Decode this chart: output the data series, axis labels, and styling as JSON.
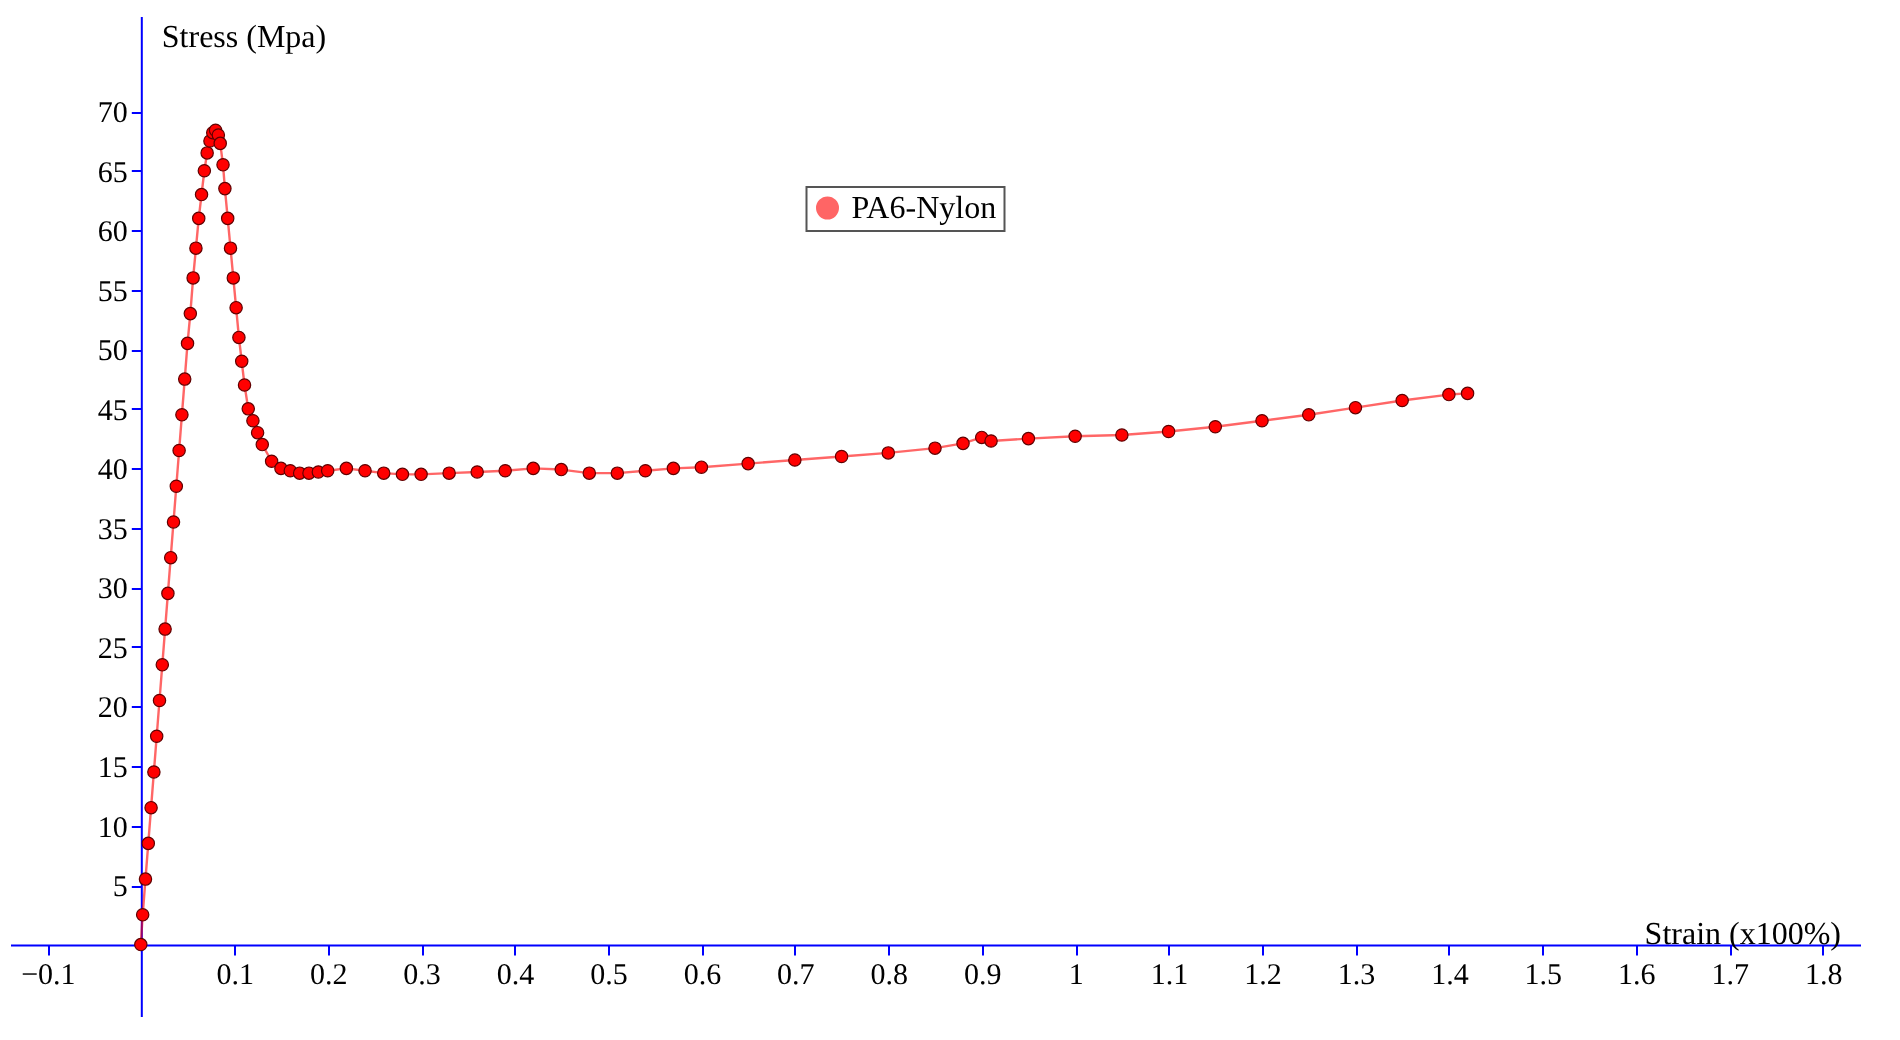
{
  "chart_data": {
    "type": "line",
    "xlabel": "Strain (x100%)",
    "ylabel": "Stress (Mpa)",
    "xlim": [
      -0.14,
      1.84
    ],
    "ylim": [
      -6,
      78
    ],
    "xticks": [
      -0.1,
      0.1,
      0.2,
      0.3,
      0.4,
      0.5,
      0.6,
      0.7,
      0.8,
      0.9,
      1,
      1.1,
      1.2,
      1.3,
      1.4,
      1.5,
      1.6,
      1.7,
      1.8
    ],
    "yticks": [
      5,
      10,
      15,
      20,
      25,
      30,
      35,
      40,
      45,
      50,
      55,
      60,
      65,
      70
    ],
    "grid": false,
    "legend": "top",
    "marker": "circle",
    "line_style": "solid",
    "series": [
      {
        "name": "PA6-Nylon",
        "color": "#ff0000",
        "x": [
          0,
          0.002,
          0.005,
          0.008,
          0.011,
          0.014,
          0.017,
          0.02,
          0.023,
          0.026,
          0.029,
          0.032,
          0.035,
          0.038,
          0.041,
          0.044,
          0.047,
          0.05,
          0.053,
          0.056,
          0.059,
          0.062,
          0.065,
          0.068,
          0.071,
          0.074,
          0.077,
          0.08,
          0.083,
          0.085,
          0.088,
          0.09,
          0.093,
          0.096,
          0.099,
          0.102,
          0.105,
          0.108,
          0.111,
          0.115,
          0.12,
          0.125,
          0.13,
          0.14,
          0.15,
          0.16,
          0.17,
          0.18,
          0.19,
          0.2,
          0.22,
          0.24,
          0.26,
          0.28,
          0.3,
          0.33,
          0.36,
          0.39,
          0.42,
          0.45,
          0.48,
          0.51,
          0.54,
          0.57,
          0.6,
          0.65,
          0.7,
          0.75,
          0.8,
          0.85,
          0.88,
          0.9,
          0.91,
          0.95,
          1.0,
          1.05,
          1.1,
          1.15,
          1.2,
          1.25,
          1.3,
          1.35,
          1.4,
          1.42
        ],
        "values": [
          0,
          2.5,
          5.5,
          8.5,
          11.5,
          14.5,
          17.5,
          20.5,
          23.5,
          26.5,
          29.5,
          32.5,
          35.5,
          38.5,
          41.5,
          44.5,
          47.5,
          50.5,
          53,
          56,
          58.5,
          61,
          63,
          65,
          66.5,
          67.5,
          68.2,
          68.4,
          68,
          67.3,
          65.5,
          63.5,
          61,
          58.5,
          56,
          53.5,
          51,
          49,
          47,
          45,
          44,
          43,
          42,
          40.6,
          40,
          39.8,
          39.6,
          39.6,
          39.7,
          39.8,
          40,
          39.8,
          39.6,
          39.5,
          39.5,
          39.6,
          39.7,
          39.8,
          40,
          39.9,
          39.6,
          39.6,
          39.8,
          40,
          40.1,
          40.4,
          40.7,
          41,
          41.3,
          41.7,
          42.1,
          42.6,
          42.3,
          42.5,
          42.7,
          42.8,
          43.1,
          43.5,
          44,
          44.5,
          45.1,
          45.7,
          46.2,
          46.3
        ]
      }
    ]
  }
}
